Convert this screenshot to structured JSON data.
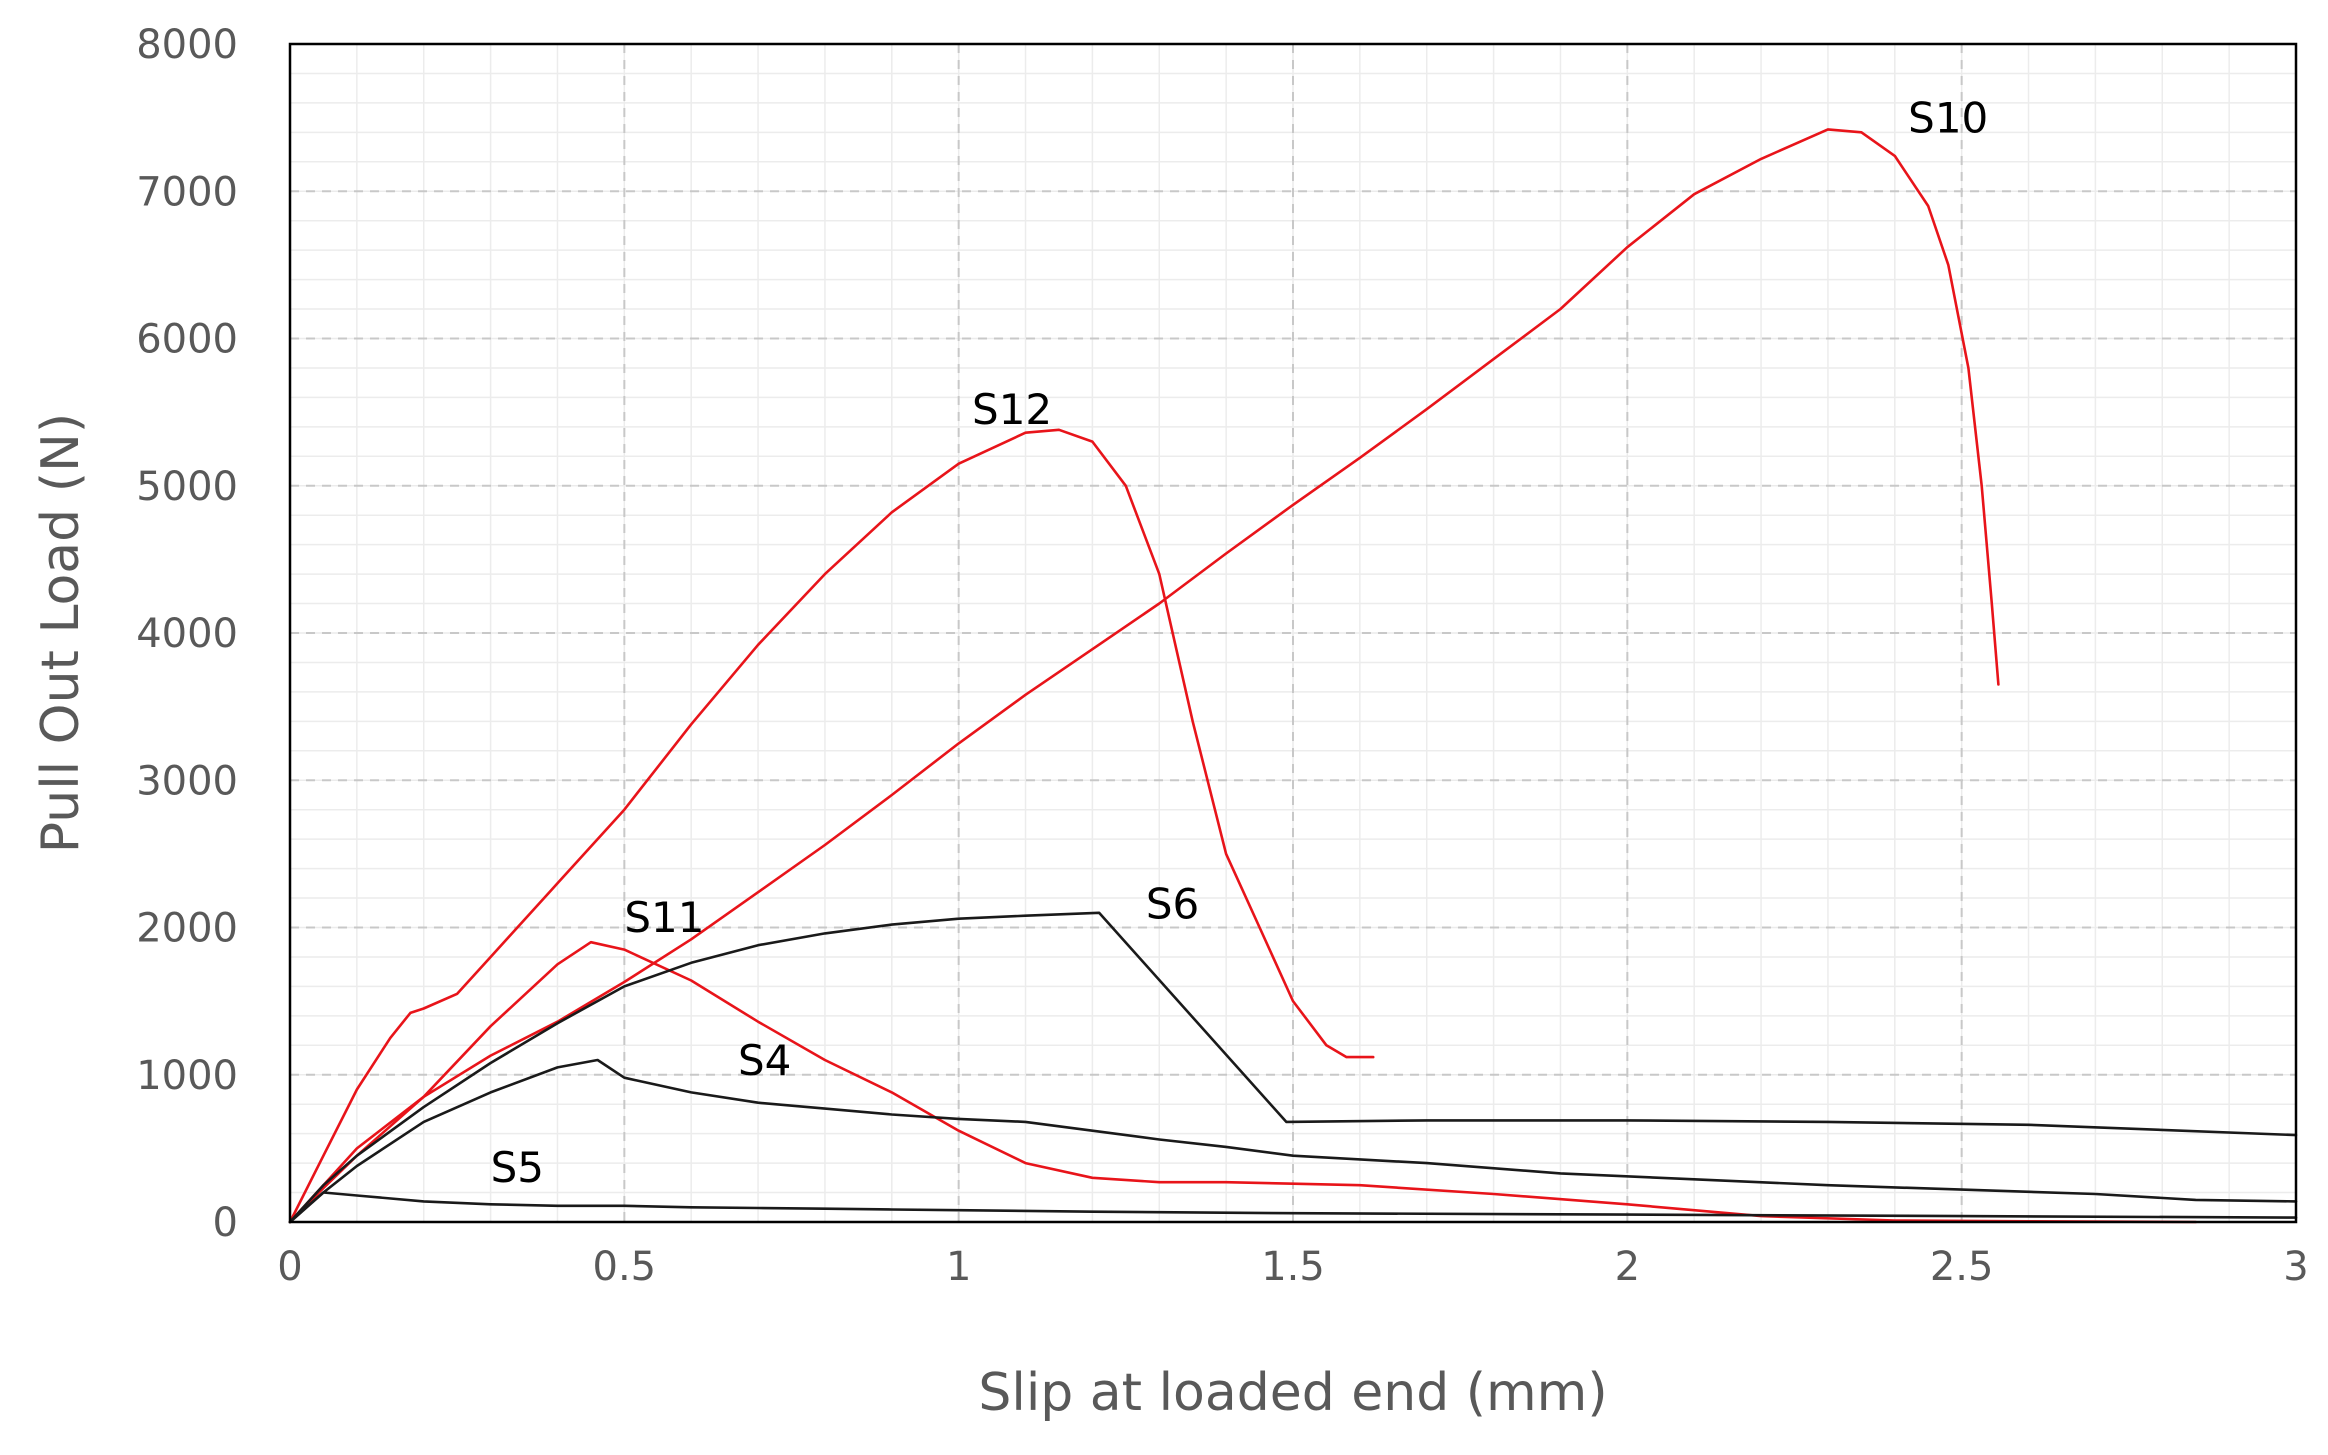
{
  "chart_data": {
    "type": "line",
    "title": "",
    "xlabel": "Slip at loaded end (mm)",
    "ylabel": "Pull Out Load (N)",
    "xlim": [
      0,
      3
    ],
    "ylim": [
      0,
      8000
    ],
    "xticks": [
      0,
      0.5,
      1,
      1.5,
      2,
      2.5,
      3
    ],
    "xtick_labels": [
      "0",
      "0.5",
      "1",
      "1.5",
      "2",
      "2.5",
      "3"
    ],
    "yticks": [
      0,
      1000,
      2000,
      3000,
      4000,
      5000,
      6000,
      7000,
      8000
    ],
    "ytick_labels": [
      "0",
      "1000",
      "2000",
      "3000",
      "4000",
      "5000",
      "6000",
      "7000",
      "8000"
    ],
    "grid": true,
    "legend": "none (labels placed next to curves)",
    "series": [
      {
        "name": "S10",
        "color": "#e8141a",
        "label_at": [
          2.42,
          7400
        ],
        "x": [
          0,
          0.05,
          0.1,
          0.2,
          0.3,
          0.4,
          0.5,
          0.6,
          0.7,
          0.8,
          0.9,
          1.0,
          1.1,
          1.2,
          1.3,
          1.4,
          1.5,
          1.6,
          1.7,
          1.8,
          1.9,
          2.0,
          2.1,
          2.2,
          2.3,
          2.35,
          2.4,
          2.45,
          2.48,
          2.51,
          2.53,
          2.545,
          2.555
        ],
        "y": [
          0,
          250,
          500,
          850,
          1130,
          1360,
          1630,
          1920,
          2240,
          2560,
          2900,
          3250,
          3580,
          3890,
          4200,
          4540,
          4870,
          5190,
          5520,
          5860,
          6200,
          6620,
          6980,
          7220,
          7420,
          7400,
          7240,
          6900,
          6500,
          5800,
          5000,
          4200,
          3650
        ]
      },
      {
        "name": "S12",
        "color": "#e8141a",
        "label_at": [
          1.02,
          5420
        ],
        "x": [
          0,
          0.05,
          0.1,
          0.15,
          0.18,
          0.2,
          0.25,
          0.3,
          0.4,
          0.5,
          0.6,
          0.7,
          0.8,
          0.9,
          1.0,
          1.1,
          1.15,
          1.2,
          1.25,
          1.3,
          1.35,
          1.4,
          1.45,
          1.5,
          1.55,
          1.58,
          1.62
        ],
        "y": [
          0,
          450,
          900,
          1250,
          1420,
          1450,
          1550,
          1800,
          2300,
          2800,
          3380,
          3920,
          4400,
          4820,
          5150,
          5360,
          5380,
          5300,
          5000,
          4400,
          3400,
          2500,
          2000,
          1500,
          1200,
          1120,
          1120
        ]
      },
      {
        "name": "S11",
        "color": "#e8141a",
        "label_at": [
          0.5,
          1970
        ],
        "x": [
          0,
          0.05,
          0.1,
          0.2,
          0.3,
          0.4,
          0.45,
          0.5,
          0.6,
          0.7,
          0.8,
          0.9,
          1.0,
          1.1,
          1.2,
          1.3,
          1.4,
          1.5,
          1.6,
          1.8,
          2.0,
          2.2,
          2.4,
          2.6,
          2.85
        ],
        "y": [
          0,
          230,
          450,
          850,
          1330,
          1750,
          1900,
          1850,
          1640,
          1360,
          1100,
          880,
          620,
          400,
          300,
          270,
          270,
          260,
          250,
          190,
          120,
          40,
          10,
          5,
          0
        ]
      },
      {
        "name": "S6",
        "color": "#1a1a1a",
        "label_at": [
          1.28,
          2060
        ],
        "x": [
          0,
          0.05,
          0.1,
          0.2,
          0.3,
          0.4,
          0.5,
          0.6,
          0.7,
          0.8,
          0.9,
          1.0,
          1.1,
          1.21,
          1.49,
          1.7,
          2.0,
          2.3,
          2.6,
          3.0
        ],
        "y": [
          0,
          250,
          450,
          780,
          1080,
          1350,
          1600,
          1760,
          1880,
          1960,
          2020,
          2060,
          2080,
          2100,
          680,
          690,
          690,
          680,
          660,
          590
        ]
      },
      {
        "name": "S4",
        "color": "#1a1a1a",
        "label_at": [
          0.67,
          1000
        ],
        "x": [
          0,
          0.05,
          0.1,
          0.2,
          0.3,
          0.4,
          0.46,
          0.5,
          0.6,
          0.7,
          0.8,
          0.9,
          1.0,
          1.1,
          1.2,
          1.3,
          1.4,
          1.5,
          1.7,
          1.9,
          2.1,
          2.3,
          2.5,
          2.7,
          2.85,
          3.0
        ],
        "y": [
          0,
          200,
          380,
          680,
          880,
          1050,
          1100,
          980,
          880,
          810,
          770,
          730,
          700,
          680,
          620,
          560,
          510,
          450,
          400,
          330,
          290,
          250,
          220,
          190,
          150,
          140
        ]
      },
      {
        "name": "S5",
        "color": "#1a1a1a",
        "label_at": [
          0.3,
          270
        ],
        "x": [
          0,
          0.05,
          0.1,
          0.2,
          0.3,
          0.4,
          0.5,
          0.6,
          0.7,
          0.8,
          0.9,
          1.0,
          1.2,
          1.5,
          2.0,
          2.5,
          3.0
        ],
        "y": [
          0,
          200,
          180,
          140,
          120,
          110,
          110,
          100,
          95,
          90,
          85,
          80,
          70,
          60,
          50,
          40,
          30
        ]
      }
    ]
  }
}
